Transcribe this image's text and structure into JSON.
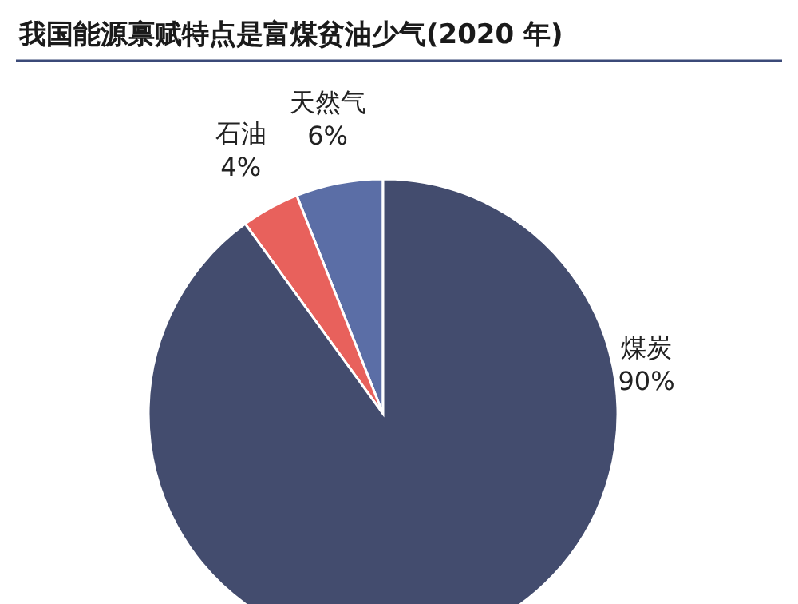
{
  "chart_data": {
    "type": "pie",
    "title": "我国能源禀赋特点是富煤贫油少气(2020 年)",
    "categories": [
      "天然气",
      "石油",
      "煤炭"
    ],
    "values": [
      6,
      4,
      90
    ],
    "colors": [
      "#5b6ea6",
      "#e8615c",
      "#434c6e"
    ],
    "value_labels": [
      "6%",
      "4%",
      "90%"
    ]
  }
}
